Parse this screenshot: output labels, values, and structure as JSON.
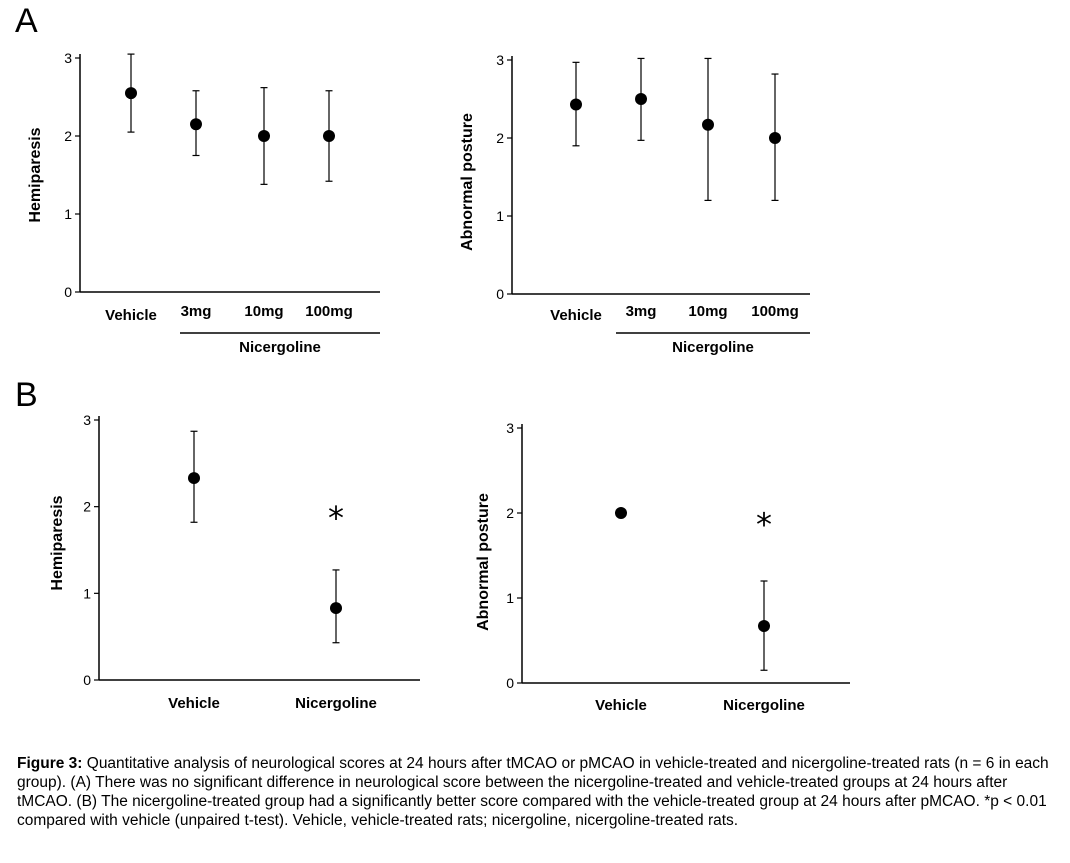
{
  "panels": [
    {
      "letter": "A"
    },
    {
      "letter": "B"
    }
  ],
  "chart_data": [
    {
      "type": "scatter",
      "panel": "A",
      "ylabel": "Hemiparesis",
      "yticks": [
        0,
        1,
        2,
        3
      ],
      "ylim": [
        0,
        3
      ],
      "categories": [
        "Vehicle",
        "3mg",
        "10mg",
        "100mg"
      ],
      "group_label": "Nicergoline",
      "points": [
        {
          "category": "Vehicle",
          "mean": 2.55,
          "low": 2.05,
          "high": 3.05
        },
        {
          "category": "3mg",
          "mean": 2.15,
          "low": 1.75,
          "high": 2.58
        },
        {
          "category": "10mg",
          "mean": 2.0,
          "low": 1.38,
          "high": 2.62
        },
        {
          "category": "100mg",
          "mean": 2.0,
          "low": 1.42,
          "high": 2.58
        }
      ]
    },
    {
      "type": "scatter",
      "panel": "A",
      "ylabel": "Abnormal posture",
      "yticks": [
        0,
        1,
        2,
        3
      ],
      "ylim": [
        0,
        3
      ],
      "categories": [
        "Vehicle",
        "3mg",
        "10mg",
        "100mg"
      ],
      "group_label": "Nicergoline",
      "points": [
        {
          "category": "Vehicle",
          "mean": 2.43,
          "low": 1.9,
          "high": 2.97
        },
        {
          "category": "3mg",
          "mean": 2.5,
          "low": 1.97,
          "high": 3.02
        },
        {
          "category": "10mg",
          "mean": 2.17,
          "low": 1.2,
          "high": 3.02
        },
        {
          "category": "100mg",
          "mean": 2.0,
          "low": 1.2,
          "high": 2.82
        }
      ]
    },
    {
      "type": "scatter",
      "panel": "B",
      "ylabel": "Hemiparesis",
      "yticks": [
        0,
        1,
        2,
        3
      ],
      "ylim": [
        0,
        3
      ],
      "categories": [
        "Vehicle",
        "Nicergoline"
      ],
      "points": [
        {
          "category": "Vehicle",
          "mean": 2.33,
          "low": 1.82,
          "high": 2.87
        },
        {
          "category": "Nicergoline",
          "mean": 0.83,
          "low": 0.43,
          "high": 1.27
        }
      ],
      "annotations": [
        {
          "category": "Nicergoline",
          "text": "*",
          "y": 1.95
        }
      ]
    },
    {
      "type": "scatter",
      "panel": "B",
      "ylabel": "Abnormal posture",
      "yticks": [
        0,
        1,
        2,
        3
      ],
      "ylim": [
        0,
        3
      ],
      "categories": [
        "Vehicle",
        "Nicergoline"
      ],
      "points": [
        {
          "category": "Vehicle",
          "mean": 2.0,
          "low": 2.0,
          "high": 2.0
        },
        {
          "category": "Nicergoline",
          "mean": 0.67,
          "low": 0.15,
          "high": 1.2
        }
      ],
      "annotations": [
        {
          "category": "Nicergoline",
          "text": "*",
          "y": 1.95
        }
      ]
    }
  ],
  "caption": {
    "label": "Figure 3:",
    "text": " Quantitative analysis of neurological scores at 24 hours after tMCAO or pMCAO in vehicle-treated and nicergoline-treated rats (n = 6 in each group). (A) There was no significant difference in neurological score between the nicergoline-treated and vehicle-treated groups at 24 hours after tMCAO. (B) The nicergoline-treated group had a significantly better score compared with the vehicle-treated group at 24 hours after pMCAO. *p < 0.01 compared with vehicle (unpaired t-test). Vehicle, vehicle-treated rats; nicergoline, nicergoline-treated rats."
  }
}
